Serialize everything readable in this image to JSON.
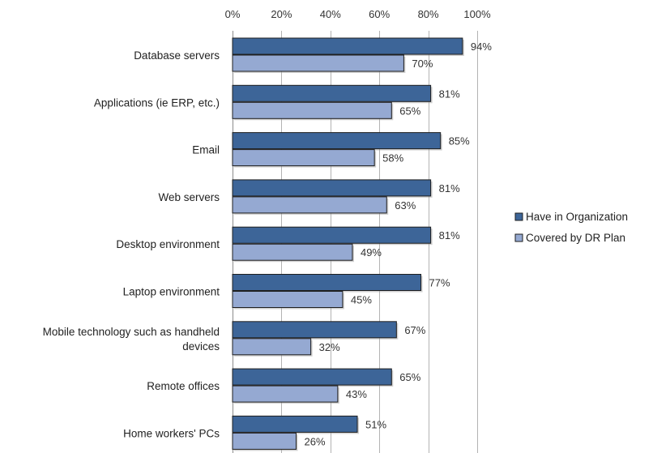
{
  "chart_data": {
    "type": "bar",
    "orientation": "horizontal",
    "categories": [
      "Database servers",
      "Applications (ie ERP, etc.)",
      "Email",
      "Web servers",
      "Desktop environment",
      "Laptop environment",
      "Mobile technology such as handheld devices",
      "Remote offices",
      "Home workers' PCs"
    ],
    "series": [
      {
        "name": "Have in Organization",
        "color": "#3d6598",
        "values": [
          94,
          81,
          85,
          81,
          81,
          77,
          67,
          65,
          51
        ],
        "labels": [
          "94%",
          "81%",
          "85%",
          "81%",
          "81%",
          "77%",
          "67%",
          "65%",
          "51%"
        ]
      },
      {
        "name": "Covered by DR Plan",
        "color": "#95a9d2",
        "values": [
          70,
          65,
          58,
          63,
          49,
          45,
          32,
          43,
          26
        ],
        "labels": [
          "70%",
          "65%",
          "58%",
          "63%",
          "49%",
          "45%",
          "32%",
          "43%",
          "26%"
        ]
      }
    ],
    "xaxis": {
      "ticks": [
        0,
        20,
        40,
        60,
        80,
        100
      ],
      "tick_labels": [
        "0%",
        "20%",
        "40%",
        "60%",
        "80%",
        "100%"
      ],
      "position": "top"
    },
    "xlim": [
      0,
      100
    ],
    "grid": true,
    "legend": "right"
  }
}
